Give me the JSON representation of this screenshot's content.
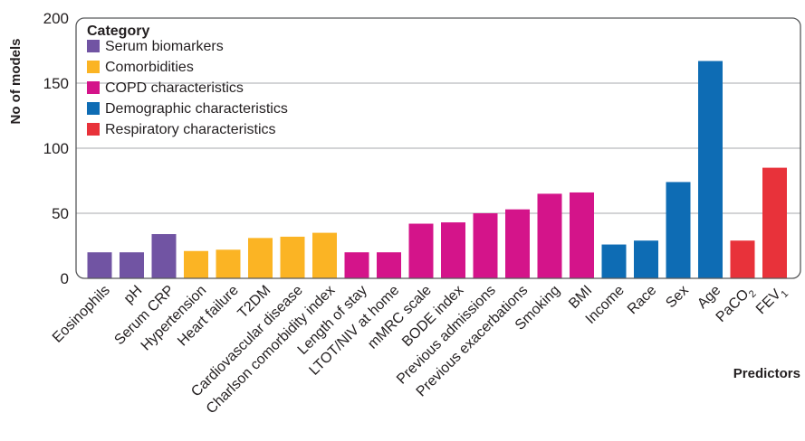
{
  "chart_data": {
    "type": "bar",
    "xlabel": "Predictors",
    "ylabel": "No of models",
    "ylim": [
      0,
      200
    ],
    "yticks": [
      "0",
      "50",
      "100",
      "150",
      "200"
    ],
    "grid": true,
    "legend": {
      "title": "Category",
      "placement": "top-left",
      "entries": [
        {
          "label": "Serum biomarkers",
          "color": "#7154a3"
        },
        {
          "label": "Comorbidities",
          "color": "#fbb424"
        },
        {
          "label": "COPD characteristics",
          "color": "#d4148a"
        },
        {
          "label": "Demographic characteristics",
          "color": "#0e6cb4"
        },
        {
          "label": "Respiratory characteristics",
          "color": "#e8323a"
        }
      ]
    },
    "bars": [
      {
        "label": "Eosinophils",
        "value": 20,
        "category": 0
      },
      {
        "label": "pH",
        "value": 20,
        "category": 0
      },
      {
        "label": "Serum CRP",
        "value": 34,
        "category": 0
      },
      {
        "label": "Hypertension",
        "value": 21,
        "category": 1
      },
      {
        "label": "Heart failure",
        "value": 22,
        "category": 1
      },
      {
        "label": "T2DM",
        "value": 31,
        "category": 1
      },
      {
        "label": "Cardiovascular disease",
        "value": 32,
        "category": 1
      },
      {
        "label": "Charlson comorbidity index",
        "value": 35,
        "category": 1
      },
      {
        "label": "Length of stay",
        "value": 20,
        "category": 2
      },
      {
        "label": "LTOT/NIV at home",
        "value": 20,
        "category": 2
      },
      {
        "label": "mMRC scale",
        "value": 42,
        "category": 2
      },
      {
        "label": "BODE index",
        "value": 43,
        "category": 2
      },
      {
        "label": "Previous admissions",
        "value": 50,
        "category": 2
      },
      {
        "label": "Previous exacerbations",
        "value": 53,
        "category": 2
      },
      {
        "label": "Smoking",
        "value": 65,
        "category": 2
      },
      {
        "label": "BMI",
        "value": 66,
        "category": 2
      },
      {
        "label": "Income",
        "value": 26,
        "category": 3
      },
      {
        "label": "Race",
        "value": 29,
        "category": 3
      },
      {
        "label": "Sex",
        "value": 74,
        "category": 3
      },
      {
        "label": "Age",
        "value": 167,
        "category": 3
      },
      {
        "label": "PaCO",
        "sub": "2",
        "value": 29,
        "category": 4
      },
      {
        "label": "FEV",
        "sub": "1",
        "value": 85,
        "category": 4
      }
    ]
  }
}
